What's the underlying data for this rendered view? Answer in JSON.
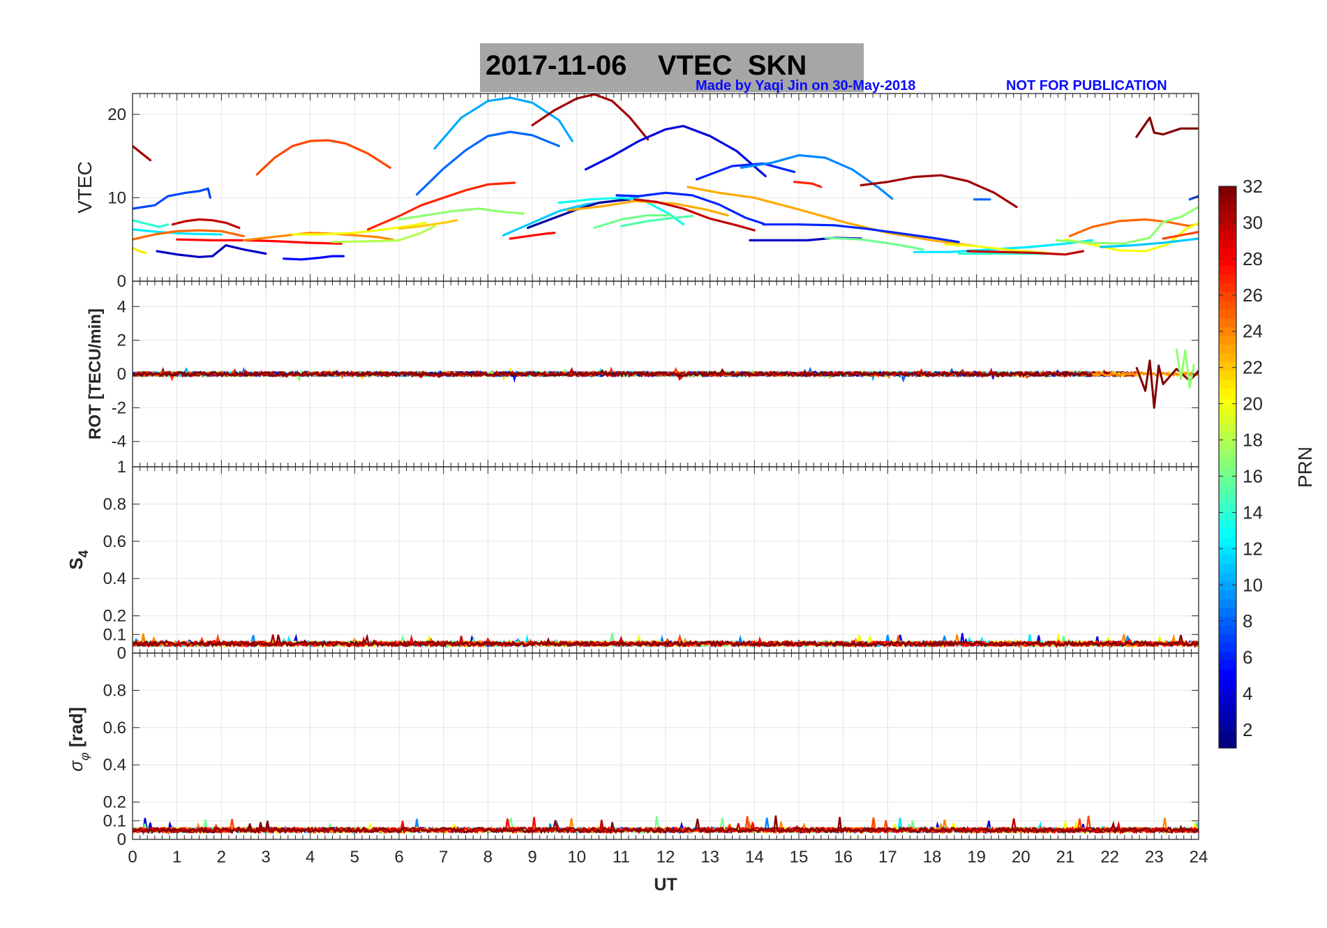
{
  "title": "2017-11-06    VTEC  SKN",
  "credit_left": "Made by Yaqi Jin on 30-May-2018",
  "credit_right": "NOT FOR PUBLICATION",
  "colorbar": {
    "label": "PRN",
    "ticks": [
      "2",
      "4",
      "6",
      "8",
      "10",
      "12",
      "14",
      "16",
      "18",
      "20",
      "22",
      "24",
      "26",
      "28",
      "30",
      "32"
    ],
    "range": [
      1,
      32
    ],
    "colormap": "jet"
  },
  "chart_data": [
    {
      "type": "line",
      "panel": "VTEC",
      "ylabel": "VTEC",
      "ylim": [
        0,
        22.5
      ],
      "yticks": [
        "0",
        "10",
        "20"
      ],
      "xlim": [
        0,
        24
      ],
      "grid": true,
      "series": [
        {
          "prn": 31,
          "x": [
            0,
            0.4
          ],
          "y": [
            16.2,
            14.5
          ]
        },
        {
          "prn": 7,
          "x": [
            0,
            0.5,
            0.8,
            1.2,
            1.5,
            1.7,
            1.75
          ],
          "y": [
            8.7,
            9.1,
            10.2,
            10.6,
            10.8,
            11.1,
            10.0
          ]
        },
        {
          "prn": 14,
          "x": [
            0,
            0.3,
            0.6,
            0.8
          ],
          "y": [
            7.3,
            6.9,
            6.5,
            6.8
          ]
        },
        {
          "prn": 12,
          "x": [
            0,
            0.6,
            1.2,
            2
          ],
          "y": [
            6.2,
            5.9,
            5.7,
            5.6
          ]
        },
        {
          "prn": 25,
          "x": [
            0,
            0.5,
            1,
            1.5,
            2,
            2.5
          ],
          "y": [
            5.0,
            5.6,
            6.0,
            6.1,
            6.0,
            5.4
          ]
        },
        {
          "prn": 21,
          "x": [
            0,
            0.15,
            0.3
          ],
          "y": [
            4.0,
            3.6,
            3.4
          ]
        },
        {
          "prn": 30,
          "x": [
            0.9,
            1.2,
            1.5,
            1.8,
            2.1,
            2.4
          ],
          "y": [
            6.8,
            7.2,
            7.4,
            7.3,
            7.0,
            6.4
          ]
        },
        {
          "prn": 28,
          "x": [
            1,
            1.8,
            2.5,
            3.2,
            4,
            4.7
          ],
          "y": [
            5.0,
            4.9,
            4.9,
            4.8,
            4.6,
            4.5
          ]
        },
        {
          "prn": 3,
          "x": [
            0.55,
            1,
            1.5,
            1.8,
            2.1,
            2.5,
            3
          ],
          "y": [
            3.6,
            3.2,
            2.9,
            3.0,
            4.3,
            3.8,
            3.3
          ]
        },
        {
          "prn": 24,
          "x": [
            2.5,
            3,
            3.5,
            4,
            4.5,
            5,
            5.5,
            5.85
          ],
          "y": [
            4.9,
            5.2,
            5.5,
            5.8,
            5.7,
            5.5,
            5.3,
            5.0
          ]
        },
        {
          "prn": 26,
          "x": [
            2.8,
            3.2,
            3.6,
            4,
            4.4,
            4.8,
            5.3,
            5.8
          ],
          "y": [
            12.8,
            14.8,
            16.2,
            16.8,
            16.9,
            16.5,
            15.3,
            13.6
          ]
        },
        {
          "prn": 5,
          "x": [
            3.4,
            3.8,
            4.2,
            4.5,
            4.75
          ],
          "y": [
            2.7,
            2.6,
            2.8,
            3.0,
            3.0
          ]
        },
        {
          "prn": 20,
          "x": [
            3.6,
            4.2,
            5,
            5.5,
            6.2,
            6.6
          ],
          "y": [
            5.6,
            5.6,
            5.8,
            6.1,
            6.6,
            7.0
          ]
        },
        {
          "prn": 18,
          "x": [
            4.5,
            5.5,
            6,
            6.5,
            6.8
          ],
          "y": [
            4.7,
            4.8,
            4.9,
            5.8,
            6.6
          ]
        },
        {
          "prn": 27,
          "x": [
            5.3,
            6,
            6.5,
            7,
            7.5,
            8,
            8.6
          ],
          "y": [
            6.2,
            7.8,
            9.1,
            10.0,
            10.9,
            11.6,
            11.8
          ]
        },
        {
          "prn": 17,
          "x": [
            6,
            6.6,
            7.2,
            7.8,
            8.2,
            8.8
          ],
          "y": [
            7.4,
            7.9,
            8.4,
            8.7,
            8.4,
            8.1
          ]
        },
        {
          "prn": 22,
          "x": [
            6,
            6.5,
            7,
            7.3
          ],
          "y": [
            6.3,
            6.6,
            7.0,
            7.3
          ]
        },
        {
          "prn": 8,
          "x": [
            6.4,
            7,
            7.5,
            8,
            8.5,
            9,
            9.6
          ],
          "y": [
            10.4,
            13.5,
            15.7,
            17.4,
            17.9,
            17.5,
            16.2
          ]
        },
        {
          "prn": 10,
          "x": [
            6.8,
            7.4,
            8,
            8.5,
            9,
            9.6,
            9.9
          ],
          "y": [
            15.9,
            19.6,
            21.6,
            22.0,
            21.4,
            19.3,
            16.8
          ]
        },
        {
          "prn": 28,
          "x": [
            8.5,
            8.9,
            9.3,
            9.5
          ],
          "y": [
            5.1,
            5.4,
            5.7,
            5.8
          ]
        },
        {
          "prn": 11,
          "x": [
            8.35,
            9,
            9.6,
            10.2,
            10.8,
            11.4
          ],
          "y": [
            5.5,
            7.0,
            8.4,
            9.2,
            9.6,
            10.1
          ]
        },
        {
          "prn": 2,
          "x": [
            8.9,
            9.4,
            10,
            10.5,
            11,
            11.2
          ],
          "y": [
            6.4,
            7.4,
            8.6,
            9.4,
            9.7,
            9.8
          ]
        },
        {
          "prn": 31,
          "x": [
            9,
            9.5,
            10,
            10.4,
            10.8,
            11.2,
            11.6
          ],
          "y": [
            18.7,
            20.5,
            21.9,
            22.4,
            21.6,
            19.6,
            17.0
          ]
        },
        {
          "prn": 13,
          "x": [
            9.6,
            10.3,
            11,
            11.5,
            12.1,
            12.4
          ],
          "y": [
            9.4,
            9.8,
            10.0,
            9.7,
            8.0,
            6.8
          ]
        },
        {
          "prn": 23,
          "x": [
            9.8,
            10.6,
            11.3,
            12.2,
            12.9,
            13.4
          ],
          "y": [
            8.5,
            9.0,
            9.6,
            9.3,
            8.6,
            7.9
          ]
        },
        {
          "prn": 16,
          "x": [
            10.4,
            11,
            11.6,
            12.1
          ],
          "y": [
            6.4,
            7.4,
            7.9,
            7.9
          ]
        },
        {
          "prn": 15,
          "x": [
            11,
            11.6,
            12.2,
            12.6
          ],
          "y": [
            6.6,
            7.2,
            7.6,
            7.8
          ]
        },
        {
          "prn": 30,
          "x": [
            11.3,
            11.8,
            12.4,
            13,
            13.6,
            14
          ],
          "y": [
            9.8,
            9.5,
            8.7,
            7.5,
            6.7,
            6.1
          ]
        },
        {
          "prn": 6,
          "x": [
            10.9,
            11.4,
            12,
            12.6,
            13.2,
            13.8,
            14.2
          ],
          "y": [
            10.3,
            10.2,
            10.6,
            10.3,
            9.2,
            7.6,
            6.9
          ]
        },
        {
          "prn": 4,
          "x": [
            10.2,
            10.8,
            11.4,
            12,
            12.4,
            13,
            13.6,
            14.25
          ],
          "y": [
            13.4,
            15.0,
            16.8,
            18.2,
            18.6,
            17.4,
            15.6,
            12.6
          ]
        },
        {
          "prn": 23,
          "x": [
            12.5,
            13.2,
            14,
            15,
            16,
            17,
            18,
            19
          ],
          "y": [
            11.3,
            10.6,
            10.0,
            8.6,
            7.1,
            5.8,
            4.9,
            4.2
          ]
        },
        {
          "prn": 6,
          "x": [
            12.7,
            13.5,
            14.2,
            14.9
          ],
          "y": [
            12.2,
            13.8,
            14.1,
            13.1
          ]
        },
        {
          "prn": 9,
          "x": [
            13.7,
            14.4,
            15,
            15.6,
            16.2,
            16.8,
            17.1
          ],
          "y": [
            13.6,
            14.2,
            15.1,
            14.8,
            13.4,
            11.2,
            9.9
          ]
        },
        {
          "prn": 27,
          "x": [
            14.9,
            15.3,
            15.5
          ],
          "y": [
            11.9,
            11.7,
            11.3
          ]
        },
        {
          "prn": 3,
          "x": [
            13.9,
            14.5,
            15.2,
            15.8,
            16.4
          ],
          "y": [
            4.9,
            4.9,
            4.9,
            5.2,
            5.1
          ]
        },
        {
          "prn": 6,
          "x": [
            14.2,
            15,
            15.8,
            16.5,
            17.2,
            18,
            18.6
          ],
          "y": [
            6.8,
            6.8,
            6.7,
            6.3,
            5.8,
            5.2,
            4.7
          ]
        },
        {
          "prn": 31,
          "x": [
            16.4,
            17,
            17.6,
            18.2,
            18.8,
            19.4,
            19.9
          ],
          "y": [
            11.5,
            11.9,
            12.5,
            12.7,
            12.0,
            10.6,
            8.9
          ]
        },
        {
          "prn": 16,
          "x": [
            15.6,
            16.4,
            17.2,
            17.8
          ],
          "y": [
            5.2,
            5.0,
            4.4,
            3.8
          ]
        },
        {
          "prn": 12,
          "x": [
            17.6,
            18.4,
            19.3,
            20.2,
            21,
            21.6
          ],
          "y": [
            3.5,
            3.5,
            3.8,
            4.1,
            4.5,
            4.9
          ]
        },
        {
          "prn": 14,
          "x": [
            18.6,
            19.4,
            20,
            20.6
          ],
          "y": [
            3.3,
            3.3,
            3.3,
            3.3
          ]
        },
        {
          "prn": 20,
          "x": [
            18.3,
            19,
            19.8,
            20.6
          ],
          "y": [
            4.4,
            4.2,
            3.7,
            3.4
          ]
        },
        {
          "prn": 30,
          "x": [
            18.8,
            19.6,
            20.3,
            21,
            21.4
          ],
          "y": [
            3.6,
            3.5,
            3.4,
            3.2,
            3.6
          ]
        },
        {
          "prn": 8,
          "x": [
            18.95,
            19.3
          ],
          "y": [
            9.8,
            9.8
          ]
        },
        {
          "prn": 25,
          "x": [
            21.1,
            21.6,
            22.2,
            22.8,
            23.3,
            23.8,
            24
          ],
          "y": [
            5.4,
            6.5,
            7.2,
            7.4,
            7.1,
            6.6,
            6.9
          ]
        },
        {
          "prn": 20,
          "x": [
            21,
            21.6,
            22.2,
            22.8,
            23.3,
            23.7,
            24
          ],
          "y": [
            5.0,
            4.4,
            3.7,
            3.6,
            4.4,
            6.2,
            7.0
          ]
        },
        {
          "prn": 17,
          "x": [
            20.8,
            21.6,
            22.3,
            22.9,
            23.2,
            23.6,
            24
          ],
          "y": [
            4.9,
            4.6,
            4.5,
            5.2,
            7.1,
            7.7,
            8.9
          ]
        },
        {
          "prn": 11,
          "x": [
            21.8,
            22.5,
            23.2,
            24
          ],
          "y": [
            4.1,
            4.3,
            4.6,
            5.1
          ]
        },
        {
          "prn": 26,
          "x": [
            23.2,
            23.6,
            24
          ],
          "y": [
            5.1,
            5.5,
            5.9
          ]
        },
        {
          "prn": 7,
          "x": [
            23.8,
            24
          ],
          "y": [
            9.8,
            10.2
          ]
        },
        {
          "prn": 32,
          "x": [
            22.6,
            22.9,
            23,
            23.2,
            23.6,
            24
          ],
          "y": [
            17.3,
            19.6,
            17.8,
            17.6,
            18.3,
            18.3
          ]
        }
      ]
    },
    {
      "type": "line",
      "panel": "ROT",
      "ylabel": "ROT [TECU/min]",
      "ylim": [
        -5.5,
        5.5
      ],
      "yticks": [
        "-4",
        "-2",
        "0",
        "2",
        "4"
      ],
      "xlim": [
        0,
        24
      ],
      "grid": true,
      "noise_level": 0.12,
      "disturbance": [
        {
          "prn": 32,
          "x": [
            22.6,
            22.8,
            22.9,
            23,
            23.1,
            23.2,
            23.5,
            23.8,
            24
          ],
          "y": [
            0.4,
            -1.0,
            0.8,
            -2.0,
            0.5,
            -0.6,
            0.3,
            -0.4,
            0.2
          ]
        },
        {
          "prn": 17,
          "x": [
            23.5,
            23.6,
            23.7,
            23.8,
            23.9
          ],
          "y": [
            1.5,
            -0.3,
            1.4,
            -0.8,
            0.6
          ]
        }
      ]
    },
    {
      "type": "line",
      "panel": "S4",
      "ylabel": "S4",
      "ylim": [
        0,
        1
      ],
      "yticks": [
        "0",
        "0.1",
        "0.2",
        "0.4",
        "0.6",
        "0.8",
        "1"
      ],
      "xlim": [
        0,
        24
      ],
      "grid": true,
      "baseline": 0.05,
      "peak": 0.1
    },
    {
      "type": "line",
      "panel": "sigma_phi",
      "ylabel": "σφ [rad]",
      "ylim": [
        0,
        1
      ],
      "yticks": [
        "0",
        "0.1",
        "0.2",
        "0.4",
        "0.6",
        "0.8"
      ],
      "xlim": [
        0,
        24
      ],
      "xlabel": "UT",
      "xticks": [
        "0",
        "1",
        "2",
        "3",
        "4",
        "5",
        "6",
        "7",
        "8",
        "9",
        "10",
        "11",
        "12",
        "13",
        "14",
        "15",
        "16",
        "17",
        "18",
        "19",
        "20",
        "21",
        "22",
        "23",
        "24"
      ],
      "grid": true,
      "baseline": 0.05,
      "peak": 0.12
    }
  ]
}
